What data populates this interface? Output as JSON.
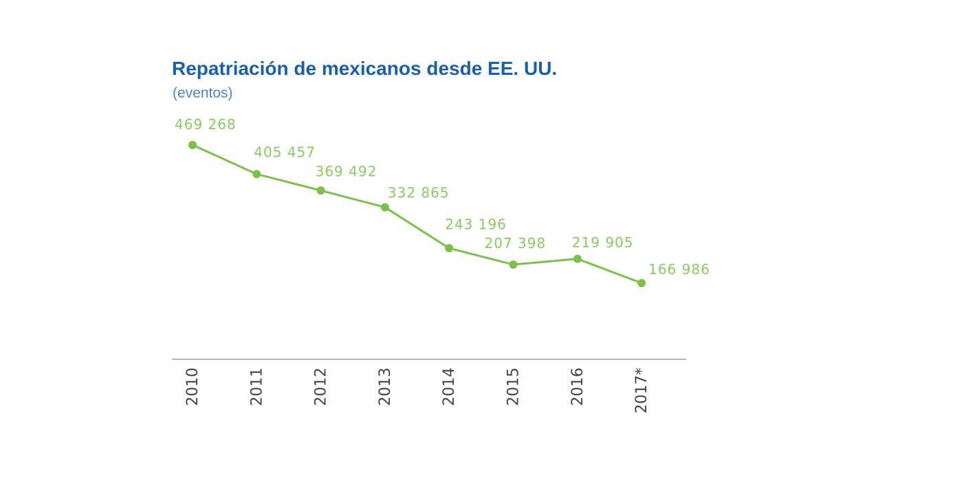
{
  "colors": {
    "title": "#1b5fa8",
    "subtitle": "#4d86c1",
    "series_line": "#7cc04b",
    "series_label": "#8cc866",
    "axis_line": "#999999",
    "tick_text": "#444444"
  },
  "chart_data": {
    "type": "line",
    "title": "Repatriación de mexicanos desde EE. UU.",
    "subtitle": "(eventos)",
    "xlabel": "",
    "ylabel": "",
    "categories": [
      "2010",
      "2011",
      "2012",
      "2013",
      "2014",
      "2015",
      "2016",
      "2017*"
    ],
    "series": [
      {
        "values": [
          469268,
          405457,
          369492,
          332865,
          243196,
          207398,
          219905,
          166986
        ],
        "labels": [
          "469 268",
          "405 457",
          "369 492",
          "332 865",
          "243 196",
          "207 398",
          "219 905",
          "166 986"
        ]
      }
    ],
    "ylim": [
      0,
      500000
    ],
    "grid": false,
    "legend": "none",
    "x_tick_orientation": "vertical"
  }
}
